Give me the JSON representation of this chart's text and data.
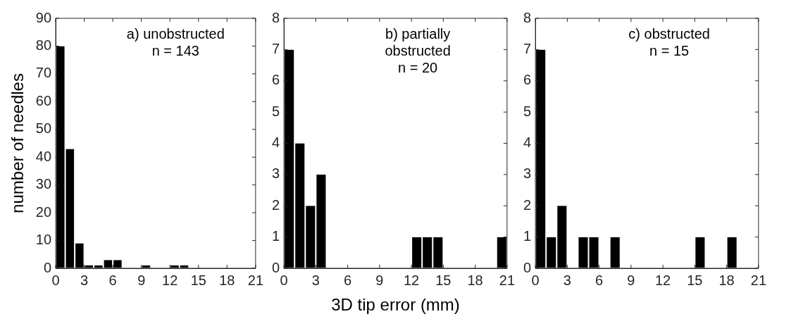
{
  "chart_data": [
    {
      "type": "histogram",
      "ylabel": "number of needles",
      "annotations": [
        "a) unobstructed",
        "n = 143"
      ],
      "bins": [
        0,
        1,
        2,
        3,
        4,
        5,
        6,
        7,
        8,
        9,
        10,
        11,
        12,
        13,
        14,
        15,
        16,
        17,
        18,
        19,
        20,
        21
      ],
      "values": [
        80,
        43,
        9,
        1,
        1,
        3,
        3,
        0,
        0,
        1,
        0,
        0,
        1,
        1,
        0,
        0,
        0,
        0,
        0,
        0,
        0
      ],
      "color": "#000000",
      "xlim": [
        0,
        21
      ],
      "xticks": [
        0,
        3,
        6,
        9,
        12,
        15,
        18,
        21
      ],
      "ylim": [
        0,
        90
      ],
      "yticks": [
        0,
        10,
        20,
        30,
        40,
        50,
        60,
        70,
        80,
        90
      ],
      "grid": false
    },
    {
      "type": "histogram",
      "xlabel": "3D tip error (mm)",
      "annotations": [
        "b) partially obstructed",
        "n = 20"
      ],
      "bins": [
        0,
        1,
        2,
        3,
        4,
        5,
        6,
        7,
        8,
        9,
        10,
        11,
        12,
        13,
        14,
        15,
        16,
        17,
        18,
        19,
        20,
        21
      ],
      "values": [
        7,
        4,
        2,
        3,
        0,
        0,
        0,
        0,
        0,
        0,
        0,
        0,
        1,
        1,
        1,
        0,
        0,
        0,
        0,
        0,
        1
      ],
      "color": "#000000",
      "xlim": [
        0,
        21
      ],
      "xticks": [
        0,
        3,
        6,
        9,
        12,
        15,
        18,
        21
      ],
      "ylim": [
        0,
        8
      ],
      "yticks": [
        0,
        1,
        2,
        3,
        4,
        5,
        6,
        7,
        8
      ],
      "grid": false
    },
    {
      "type": "histogram",
      "annotations": [
        "c) obstructed",
        "n = 15"
      ],
      "bins": [
        0,
        1,
        2,
        3,
        4,
        5,
        6,
        7,
        8,
        9,
        10,
        11,
        12,
        13,
        14,
        15,
        16,
        17,
        18,
        19,
        20,
        21
      ],
      "values": [
        7,
        1,
        2,
        0,
        1,
        1,
        0,
        1,
        0,
        0,
        0,
        0,
        0,
        0,
        0,
        1,
        0,
        0,
        1,
        0,
        0
      ],
      "color": "#000000",
      "xlim": [
        0,
        21
      ],
      "xticks": [
        0,
        3,
        6,
        9,
        12,
        15,
        18,
        21
      ],
      "ylim": [
        0,
        8
      ],
      "yticks": [
        0,
        1,
        2,
        3,
        4,
        5,
        6,
        7,
        8
      ],
      "grid": false
    }
  ]
}
